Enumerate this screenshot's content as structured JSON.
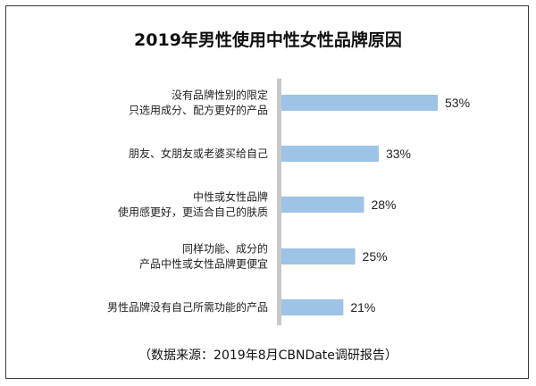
{
  "chart_data": {
    "type": "bar",
    "orientation": "horizontal",
    "title": "2019年男性使用中性女性品牌原因",
    "source": "（数据来源：2019年8月CBNDate调研报告）",
    "categories": [
      [
        "没有品牌性别的限定",
        "只选用成分、配方更好的产品"
      ],
      [
        "朋友、女朋友或老婆买给自己"
      ],
      [
        "中性或女性品牌",
        "使用感更好，更适合自己的肤质"
      ],
      [
        "同样功能、成分的",
        "产品中性或女性品牌更便宜"
      ],
      [
        "男性品牌没有自己所需功能的产品"
      ]
    ],
    "values": [
      53,
      33,
      28,
      25,
      21
    ],
    "value_labels": [
      "53%",
      "33%",
      "28%",
      "25%",
      "21%"
    ],
    "unit": "%",
    "xlim": [
      0,
      60
    ],
    "bar_color": "#9dc3e6",
    "axis_color": "#c8c8c8"
  }
}
